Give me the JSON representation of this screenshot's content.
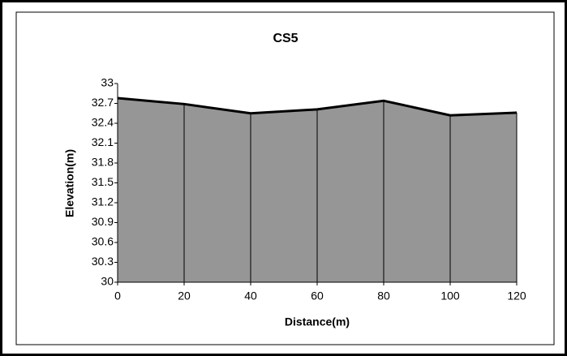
{
  "chart_data": {
    "type": "area",
    "title": "CS5",
    "x_label": "Distance(m)",
    "y_label": "Elevation(m)",
    "x": [
      0,
      20,
      40,
      60,
      80,
      100,
      120
    ],
    "values": [
      32.78,
      32.69,
      32.55,
      32.61,
      32.74,
      32.52,
      32.56
    ],
    "color": "#969696",
    "xlim": [
      0,
      120
    ],
    "xticks": [
      0,
      20,
      40,
      60,
      80,
      100,
      120
    ],
    "ylim": [
      30,
      33
    ],
    "yticks": [
      30,
      30.3,
      30.6,
      30.9,
      31.2,
      31.5,
      31.8,
      32.1,
      32.4,
      32.7,
      33
    ]
  }
}
